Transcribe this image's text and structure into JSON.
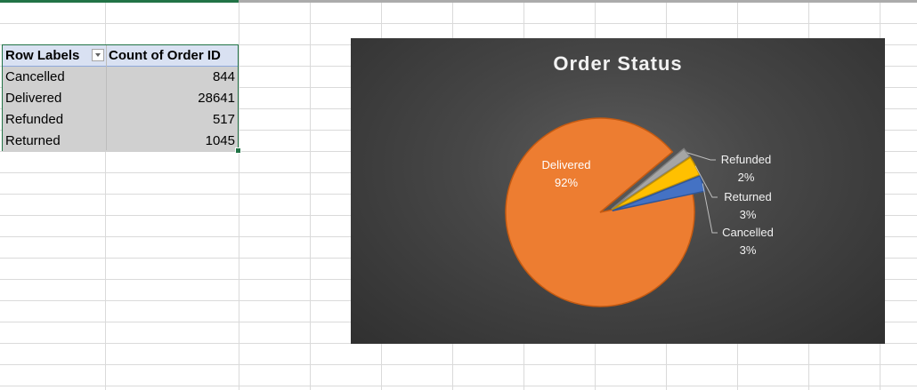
{
  "pivot_table": {
    "headers": {
      "row_labels": "Row Labels",
      "count": "Count of Order ID"
    },
    "rows": [
      {
        "label": "Cancelled",
        "value": "844"
      },
      {
        "label": "Delivered",
        "value": "28641"
      },
      {
        "label": "Refunded",
        "value": "517"
      },
      {
        "label": "Returned",
        "value": "1045"
      }
    ]
  },
  "chart_data": {
    "type": "pie",
    "title": "Order Status",
    "categories": [
      "Delivered",
      "Refunded",
      "Returned",
      "Cancelled"
    ],
    "values": [
      28641,
      517,
      1045,
      844
    ],
    "percent_labels": [
      "92%",
      "2%",
      "3%",
      "3%"
    ],
    "colors": [
      "#ed7d31",
      "#a5a5a5",
      "#ffc000",
      "#4472c4"
    ],
    "exploded": [
      "Refunded",
      "Returned",
      "Cancelled"
    ],
    "legend": "none",
    "background": "#404040"
  }
}
